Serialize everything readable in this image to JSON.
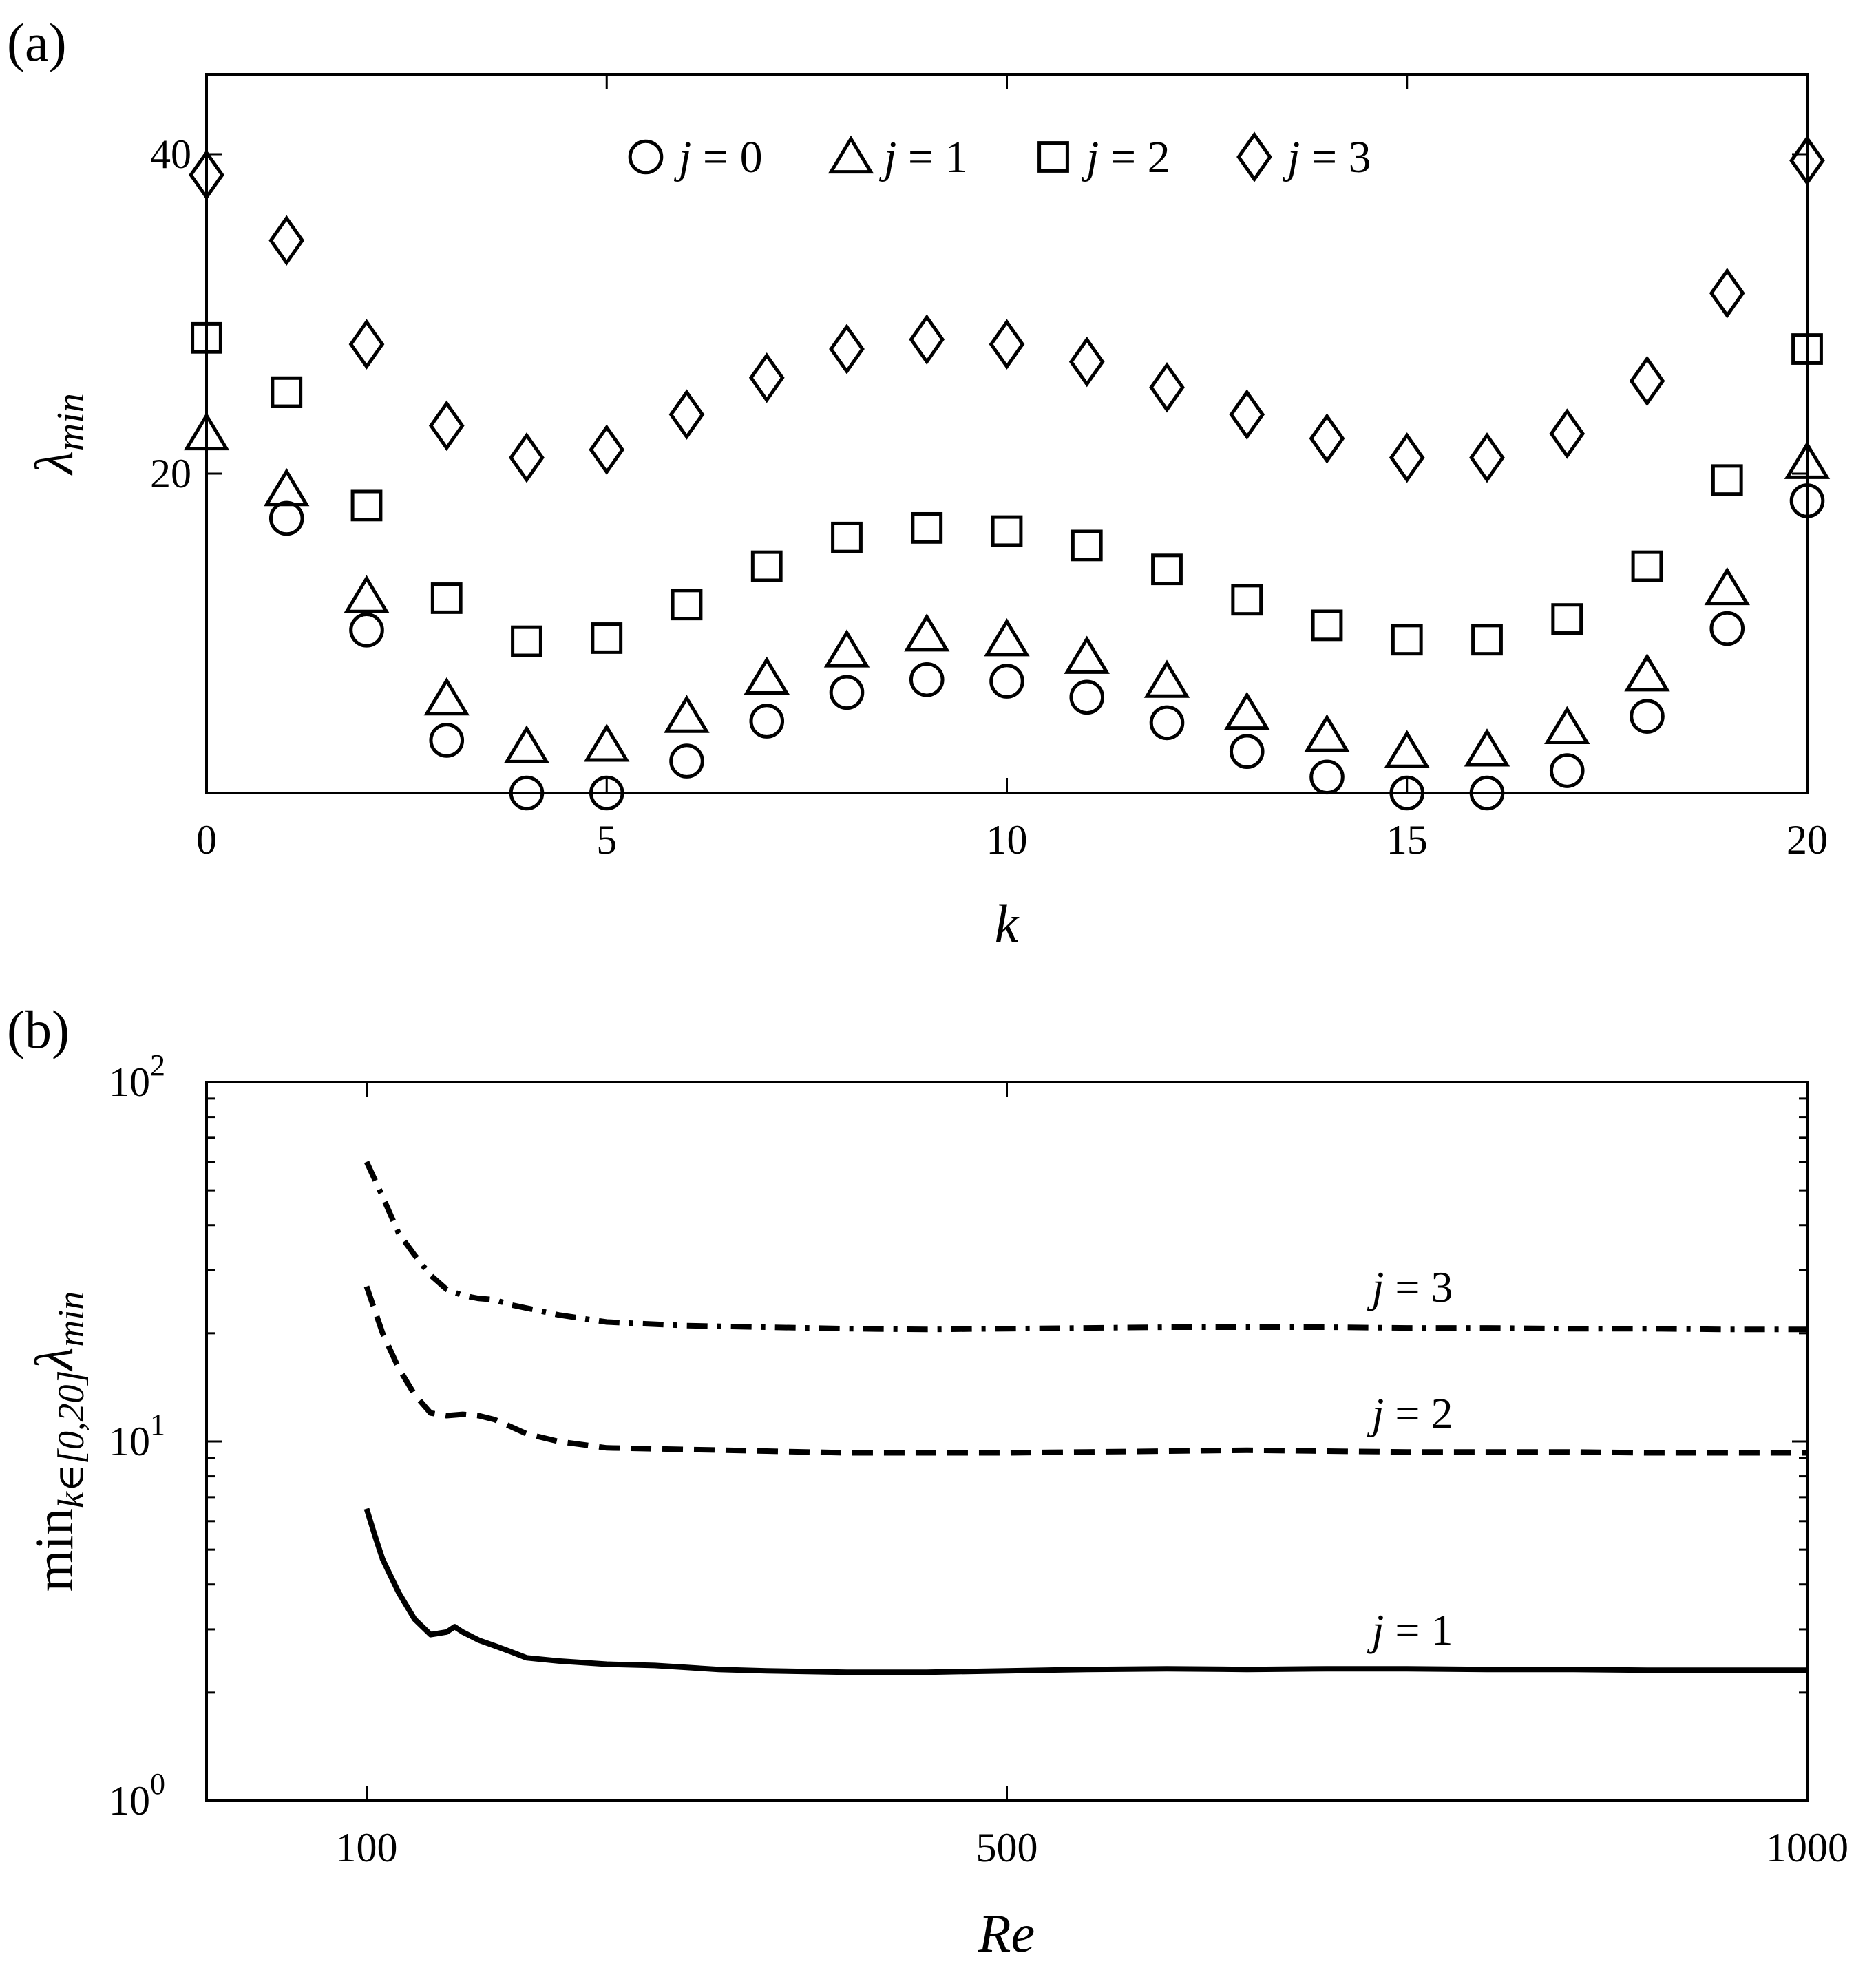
{
  "chart_data": [
    {
      "panel_label": "(a)",
      "type": "scatter",
      "xlabel": "k",
      "ylabel": "λ",
      "ylabel_sub": "min",
      "xlim": [
        0,
        20
      ],
      "ylim": [
        0,
        45
      ],
      "xticks": [
        0,
        5,
        10,
        15,
        20
      ],
      "xtick_labels": [
        "0",
        "5",
        "10",
        "15",
        "20"
      ],
      "yticks": [
        20,
        40
      ],
      "ytick_labels": [
        "20",
        "40"
      ],
      "legend_position": "top",
      "series": [
        {
          "name": "j = 0",
          "marker": "circle",
          "j": "j",
          "rest": " = 0",
          "x": [
            1,
            2,
            3,
            4,
            5,
            6,
            7,
            8,
            9,
            10,
            11,
            12,
            13,
            14,
            15,
            16,
            17,
            18,
            19,
            20
          ],
          "values": [
            17.2,
            10.2,
            3.3,
            0.0,
            0.0,
            2.0,
            4.5,
            6.3,
            7.1,
            7.0,
            6.0,
            4.4,
            2.6,
            1.0,
            0.0,
            0.0,
            1.4,
            4.8,
            10.3,
            18.3
          ]
        },
        {
          "name": "j = 1",
          "marker": "triangle",
          "j": "j",
          "rest": " = 1",
          "x": [
            0,
            1,
            2,
            3,
            4,
            5,
            6,
            7,
            8,
            9,
            10,
            11,
            12,
            13,
            14,
            15,
            16,
            17,
            18,
            19,
            20
          ],
          "values": [
            22.5,
            19.0,
            12.3,
            5.9,
            2.9,
            3.0,
            4.8,
            7.2,
            8.9,
            9.9,
            9.6,
            8.5,
            7.0,
            5.0,
            3.6,
            2.6,
            2.7,
            4.1,
            7.4,
            12.8,
            20.7
          ]
        },
        {
          "name": "j = 2",
          "marker": "square",
          "j": "j",
          "rest": " = 2",
          "x": [
            0,
            1,
            2,
            3,
            4,
            5,
            6,
            7,
            8,
            9,
            10,
            11,
            12,
            13,
            14,
            15,
            16,
            17,
            18,
            19,
            20
          ],
          "values": [
            28.5,
            25.1,
            18.0,
            12.2,
            9.5,
            9.7,
            11.8,
            14.2,
            16.0,
            16.6,
            16.4,
            15.5,
            14.0,
            12.1,
            10.5,
            9.6,
            9.6,
            10.9,
            14.2,
            19.6,
            27.8
          ]
        },
        {
          "name": "j = 3",
          "marker": "diamond",
          "j": "j",
          "rest": " = 3",
          "x": [
            0,
            1,
            2,
            3,
            4,
            5,
            6,
            7,
            8,
            9,
            10,
            11,
            12,
            13,
            14,
            15,
            16,
            17,
            18,
            19,
            20
          ],
          "values": [
            38.7,
            34.6,
            28.1,
            23.0,
            21.0,
            21.5,
            23.7,
            26.0,
            27.8,
            28.4,
            28.1,
            27.0,
            25.4,
            23.7,
            22.2,
            21.0,
            21.0,
            22.5,
            25.8,
            31.3,
            39.6
          ]
        }
      ]
    },
    {
      "panel_label": "(b)",
      "type": "line",
      "xlabel": "Re",
      "ylabel_prefix": "min",
      "ylabel_sub": "k∈[0,20]",
      "ylabel_main": "λ",
      "ylabel_sub2": "min",
      "xscale": "linear",
      "yscale": "log",
      "xlim": [
        0,
        1000
      ],
      "ylim": [
        1,
        100
      ],
      "xticks": [
        100,
        500,
        1000
      ],
      "xtick_labels": [
        "100",
        "500",
        "1000"
      ],
      "yticks": [
        1,
        10,
        100
      ],
      "ytick_base": "10",
      "ytick_exponents": [
        "0",
        "1",
        "2"
      ],
      "series": [
        {
          "name": "j = 3",
          "label": "j = 3",
          "style": "dashdot",
          "x": [
            100,
            110,
            120,
            130,
            140,
            150,
            160,
            170,
            180,
            190,
            200,
            220,
            250,
            300,
            350,
            400,
            450,
            500,
            550,
            600,
            650,
            700,
            750,
            800,
            850,
            900,
            950,
            1000
          ],
          "values": [
            60,
            48,
            38,
            33,
            29,
            26.5,
            25.5,
            25,
            24.8,
            24,
            23.5,
            22.5,
            21.5,
            21,
            20.8,
            20.6,
            20.5,
            20.6,
            20.7,
            20.8,
            20.8,
            20.8,
            20.7,
            20.7,
            20.6,
            20.6,
            20.5,
            20.5
          ]
        },
        {
          "name": "j = 2",
          "label": "j = 2",
          "style": "dashed",
          "x": [
            100,
            110,
            120,
            130,
            140,
            150,
            160,
            170,
            180,
            190,
            200,
            220,
            250,
            300,
            350,
            400,
            450,
            500,
            550,
            600,
            650,
            700,
            750,
            800,
            850,
            900,
            950,
            1000
          ],
          "values": [
            27,
            20,
            16,
            13.5,
            12,
            11.8,
            11.9,
            11.8,
            11.5,
            11,
            10.5,
            10,
            9.6,
            9.5,
            9.4,
            9.3,
            9.3,
            9.3,
            9.35,
            9.4,
            9.45,
            9.4,
            9.35,
            9.35,
            9.35,
            9.3,
            9.3,
            9.3
          ]
        },
        {
          "name": "j = 1",
          "label": "j = 1",
          "style": "solid",
          "x": [
            100,
            105,
            110,
            120,
            130,
            140,
            150,
            155,
            160,
            170,
            180,
            190,
            200,
            220,
            250,
            280,
            300,
            320,
            350,
            400,
            450,
            500,
            550,
            600,
            650,
            700,
            750,
            800,
            850,
            900,
            950,
            1000
          ],
          "values": [
            6.5,
            5.5,
            4.7,
            3.8,
            3.2,
            2.9,
            2.95,
            3.05,
            2.95,
            2.8,
            2.7,
            2.6,
            2.5,
            2.45,
            2.4,
            2.38,
            2.35,
            2.32,
            2.3,
            2.28,
            2.28,
            2.3,
            2.32,
            2.33,
            2.32,
            2.33,
            2.33,
            2.32,
            2.32,
            2.31,
            2.31,
            2.31
          ]
        }
      ]
    }
  ]
}
